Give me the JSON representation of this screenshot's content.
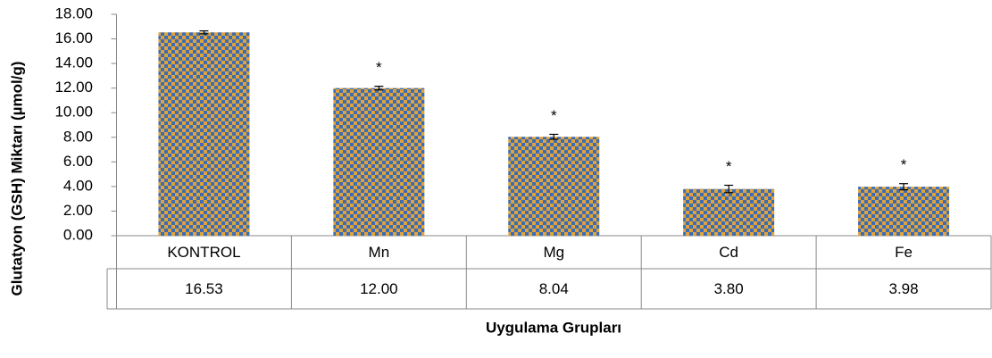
{
  "chart_data": {
    "type": "bar",
    "y_label": "Glutatyon (GSH) Miktarı (µmol/g)",
    "x_label": "Uygulama Grupları",
    "categories": [
      "KONTROL",
      "Mn",
      "Mg",
      "Cd",
      "Fe"
    ],
    "values": [
      16.53,
      12,
      8.04,
      3.8,
      3.98
    ],
    "value_labels": [
      "16.53",
      "12.00",
      "8.04",
      "3.80",
      "3.98"
    ],
    "errors": [
      0.12,
      0.15,
      0.2,
      0.3,
      0.25
    ],
    "annotations": [
      null,
      "*",
      "*",
      "*",
      "*"
    ],
    "pattern_colors": [
      "#3c6db4",
      "#e0a33c"
    ],
    "ylim": [
      0,
      18
    ],
    "yticks": [
      {
        "value": 0,
        "label": "0.00"
      },
      {
        "value": 2,
        "label": "2.00"
      },
      {
        "value": 4,
        "label": "4.00"
      },
      {
        "value": 6,
        "label": "6.00"
      },
      {
        "value": 8,
        "label": "8.00"
      },
      {
        "value": 10,
        "label": "10.00"
      },
      {
        "value": 12,
        "label": "12.00"
      },
      {
        "value": 14,
        "label": "14.00"
      },
      {
        "value": 16,
        "label": "16.00"
      },
      {
        "value": 18,
        "label": "18.00"
      }
    ]
  }
}
